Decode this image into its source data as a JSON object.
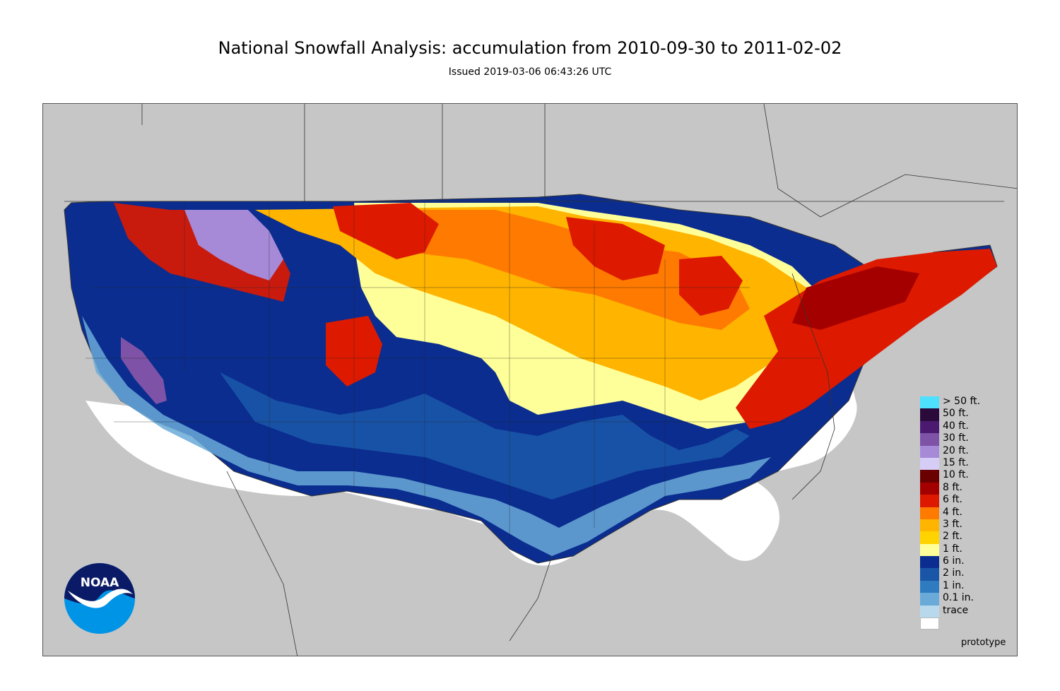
{
  "title": "National Snowfall Analysis: accumulation from 2010-09-30 to 2011-02-02",
  "subtitle": "Issued 2019-03-06 06:43:26 UTC",
  "logo_text": "NOAA",
  "footer_note": "prototype",
  "colors": {
    "land_outside": "#c6c6c6",
    "no_snow": "#ffffff",
    "border_lines": "#333333"
  },
  "legend": [
    {
      "label": "> 50 ft.",
      "color": "#4de0ff"
    },
    {
      "label": "50 ft.",
      "color": "#2a0a3a"
    },
    {
      "label": "40 ft.",
      "color": "#4b1a70"
    },
    {
      "label": "30 ft.",
      "color": "#7e52a6"
    },
    {
      "label": "20 ft.",
      "color": "#a68ad8"
    },
    {
      "label": "15 ft.",
      "color": "#d5cdf5"
    },
    {
      "label": "10 ft.",
      "color": "#6b0000"
    },
    {
      "label": "8 ft.",
      "color": "#a50000"
    },
    {
      "label": "6 ft.",
      "color": "#dd1a00"
    },
    {
      "label": "4 ft.",
      "color": "#ff7a00"
    },
    {
      "label": "3 ft.",
      "color": "#ffb400"
    },
    {
      "label": "2 ft.",
      "color": "#ffd300"
    },
    {
      "label": "1 ft.",
      "color": "#ffff99"
    },
    {
      "label": "6 in.",
      "color": "#0a2d8f"
    },
    {
      "label": "2 in.",
      "color": "#1a56a8"
    },
    {
      "label": "1 in.",
      "color": "#2e7cbf"
    },
    {
      "label": "0.1 in.",
      "color": "#6aaad8"
    },
    {
      "label": "trace",
      "color": "#b8d8ec"
    }
  ]
}
